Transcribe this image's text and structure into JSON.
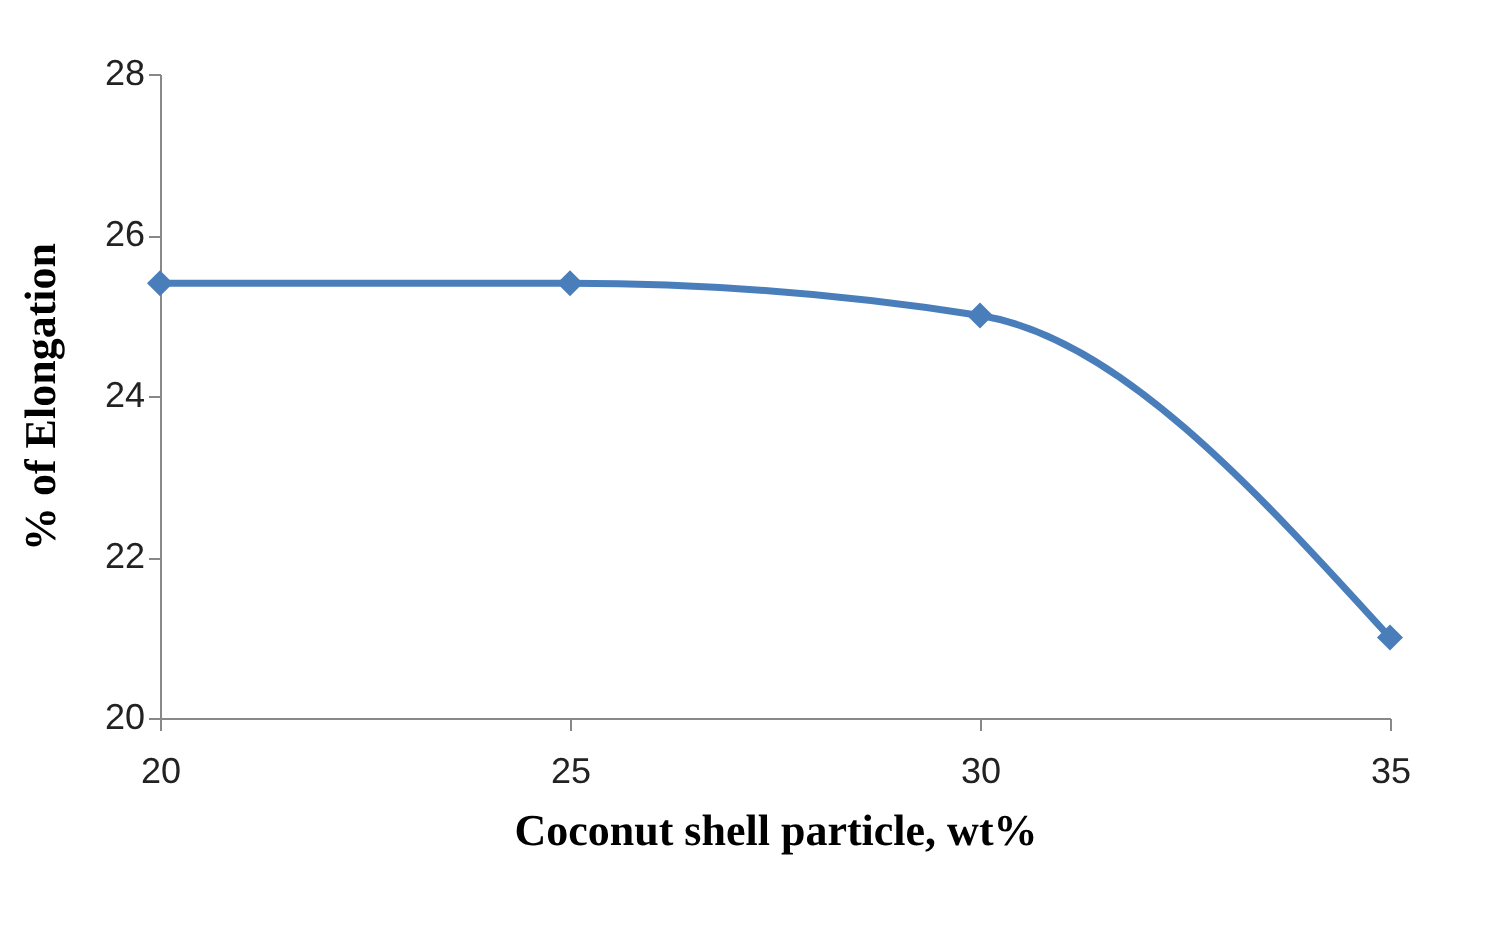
{
  "chart_data": {
    "type": "line",
    "xlabel": "Coconut shell particle, wt%",
    "ylabel": "% of Elongation",
    "x": [
      20,
      25,
      30,
      35
    ],
    "series": [
      {
        "color": "#4a7ebb",
        "values": [
          25.4,
          25.4,
          25.0,
          21.0
        ]
      }
    ],
    "xlim": [
      20,
      35
    ],
    "xticks": [
      20,
      25,
      30,
      35
    ],
    "ylim": [
      20,
      28
    ],
    "yticks": [
      20,
      22,
      24,
      26,
      28
    ],
    "marker": "diamond",
    "grid": false,
    "legend": false
  }
}
